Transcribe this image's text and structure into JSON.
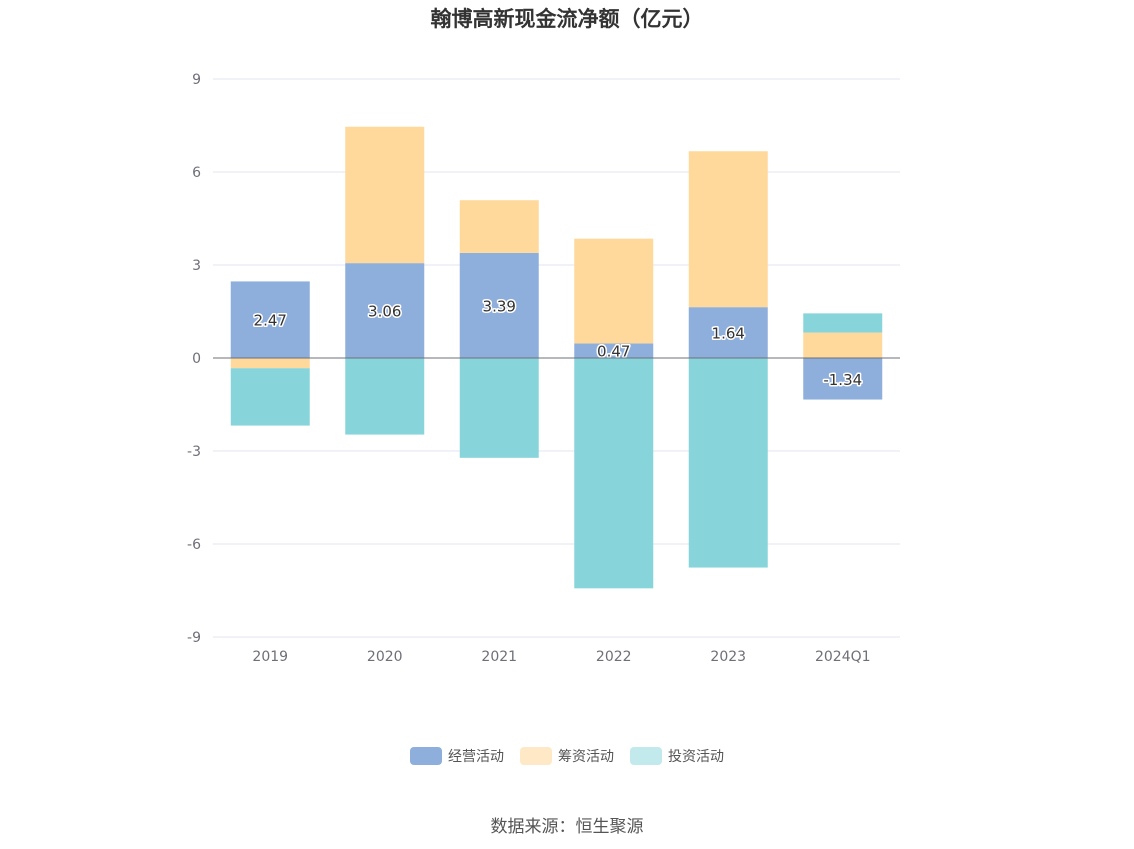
{
  "chart_data": {
    "type": "bar",
    "stacked": true,
    "title": "翰博高新现金流净额（亿元）",
    "categories": [
      "2019",
      "2020",
      "2021",
      "2022",
      "2023",
      "2024Q1"
    ],
    "series": [
      {
        "name": "经营活动",
        "color": "#8eaedb",
        "values": [
          2.47,
          3.06,
          3.39,
          0.47,
          1.64,
          -1.34
        ],
        "labels": [
          "2.47",
          "3.06",
          "3.39",
          "0.47",
          "1.64",
          "-1.34"
        ]
      },
      {
        "name": "筹资活动",
        "color": "#ffd99b",
        "values": [
          -0.33,
          4.4,
          1.7,
          3.38,
          5.03,
          0.82
        ]
      },
      {
        "name": "投资活动",
        "color": "#87d5da",
        "values": [
          -1.85,
          -2.47,
          -3.22,
          -7.43,
          -6.76,
          0.62
        ]
      }
    ],
    "ylim": [
      -9,
      9
    ],
    "yticks": [
      "9",
      "6",
      "3",
      "0",
      "-3",
      "-6",
      "-9"
    ],
    "legend_colors": [
      "#8eaedb",
      "#ffe8c6",
      "#c2e9ec"
    ],
    "grid": true,
    "legend_position": "bottom"
  },
  "source": "数据来源：恒生聚源"
}
